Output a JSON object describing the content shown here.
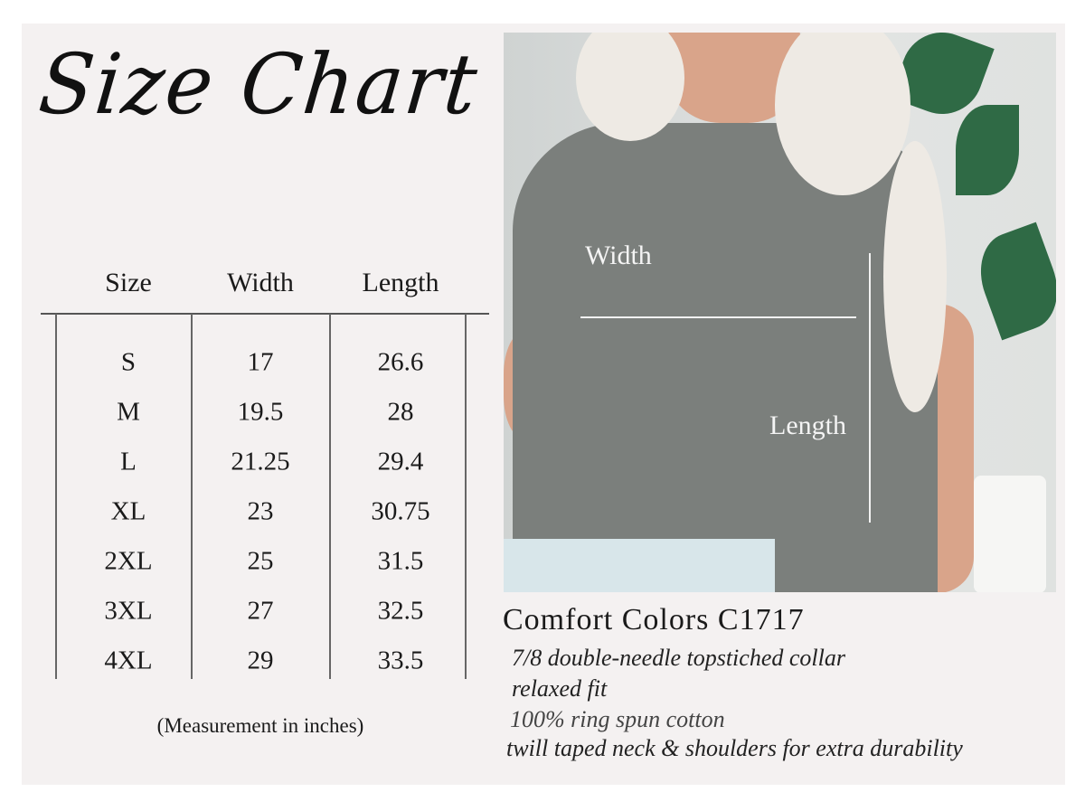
{
  "title": "Size Chart",
  "table": {
    "headers": [
      "Size",
      "Width",
      "Length"
    ],
    "rows": [
      [
        "S",
        "17",
        "26.6"
      ],
      [
        "M",
        "19.5",
        "28"
      ],
      [
        "L",
        "21.25",
        "29.4"
      ],
      [
        "XL",
        "23",
        "30.75"
      ],
      [
        "2XL",
        "25",
        "31.5"
      ],
      [
        "3XL",
        "27",
        "32.5"
      ],
      [
        "4XL",
        "29",
        "33.5"
      ]
    ],
    "note": "(Measurement in inches)"
  },
  "photo": {
    "width_label": "Width",
    "length_label": "Length",
    "colors": {
      "shirt": "#7b7f7c",
      "arrow": "#f2f2f2",
      "background": "#f4f1f1"
    }
  },
  "product": {
    "name": "Comfort Colors C1717",
    "features": [
      "7/8 double-needle topstiched collar",
      "relaxed fit",
      "100% ring spun cotton",
      "twill taped neck & shoulders for extra durability"
    ]
  }
}
